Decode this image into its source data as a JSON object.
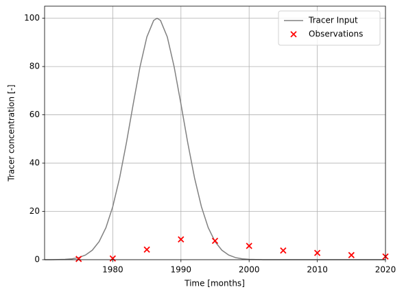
{
  "chart_data": {
    "type": "line",
    "xlabel": "Time [months]",
    "ylabel": "Tracer concentration [-]",
    "xlim": [
      1970,
      2020
    ],
    "xticks": [
      1980,
      1990,
      2000,
      2010,
      2020
    ],
    "ylim": [
      0,
      105
    ],
    "yticks": [
      0,
      20,
      40,
      60,
      80,
      100
    ],
    "grid": true,
    "legend": "upper-right",
    "series": [
      {
        "name": "Tracer Input",
        "type": "line",
        "color": "#808080",
        "x": [
          1970,
          1971,
          1972,
          1973,
          1974,
          1975,
          1976,
          1977,
          1978,
          1979,
          1980,
          1981,
          1982,
          1983,
          1984,
          1985,
          1986,
          1986.5,
          1987,
          1988,
          1989,
          1990,
          1991,
          1992,
          1993,
          1994,
          1995,
          1996,
          1997,
          1998,
          1999,
          2000,
          2001,
          2002,
          2003,
          2004,
          2006,
          2008,
          2010,
          2012,
          2014,
          2016,
          2018,
          2020
        ],
        "values": [
          0.0057,
          0.018,
          0.053,
          0.145,
          0.368,
          0.87,
          1.92,
          3.93,
          7.49,
          13.29,
          21.98,
          33.79,
          48.38,
          64.47,
          79.93,
          92.25,
          99.1,
          100,
          99.1,
          92.25,
          79.93,
          64.47,
          48.38,
          33.79,
          21.98,
          13.29,
          7.49,
          3.93,
          1.92,
          0.87,
          0.368,
          0.145,
          0.053,
          0.018,
          0.0057,
          0,
          0,
          0,
          0,
          0,
          0,
          0,
          0,
          0
        ]
      },
      {
        "name": "Observations",
        "type": "scatter",
        "color": "#ff0000",
        "x": [
          1975,
          1980,
          1985,
          1990,
          1995,
          2000,
          2005,
          2010,
          2015,
          2020
        ],
        "values": [
          0.3,
          0.5,
          4.2,
          8.4,
          7.8,
          5.7,
          3.8,
          2.8,
          1.9,
          1.3
        ]
      }
    ]
  }
}
